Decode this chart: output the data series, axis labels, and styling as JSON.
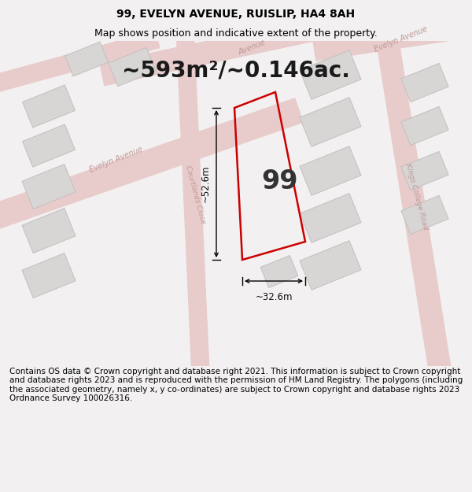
{
  "title": "99, EVELYN AVENUE, RUISLIP, HA4 8AH",
  "subtitle": "Map shows position and indicative extent of the property.",
  "footer": "Contains OS data © Crown copyright and database right 2021. This information is subject to Crown copyright and database rights 2023 and is reproduced with the permission of HM Land Registry. The polygons (including the associated geometry, namely x, y co-ordinates) are subject to Crown copyright and database rights 2023 Ordnance Survey 100026316.",
  "area_text": "~593m²/~0.146ac.",
  "label_99": "99",
  "dim_width": "~32.6m",
  "dim_height": "~52.6m",
  "bg_color": "#f2f0f0",
  "map_bg": "#f2f0f0",
  "road_color": "#e8cbcb",
  "road_edge": "#ddbfbf",
  "plot_border_color": "#cc0000",
  "building_fill": "#d8d5d5",
  "building_stroke": "#c4bfbf",
  "street_label_color": "#c09898",
  "title_fontsize": 10,
  "subtitle_fontsize": 9,
  "footer_fontsize": 7.5,
  "area_fontsize": 20,
  "label_fontsize": 24
}
